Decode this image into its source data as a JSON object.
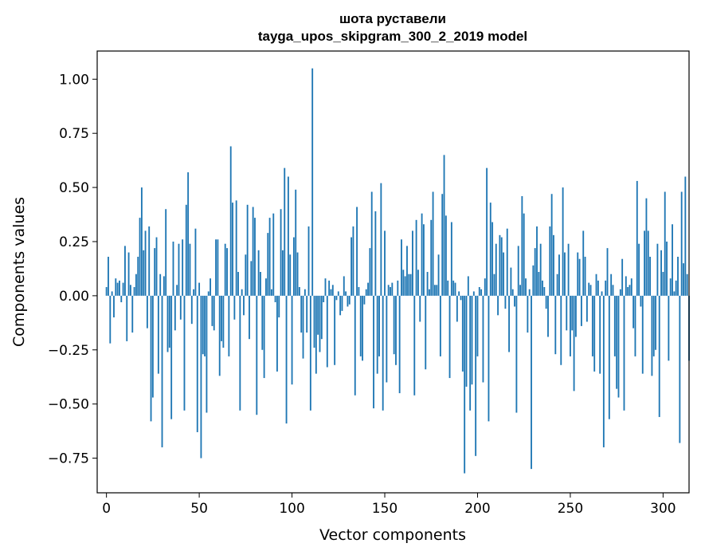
{
  "chart_data": {
    "type": "bar",
    "title_lines": [
      "шота руставели",
      "tayga_upos_skipgram_300_2_2019 model"
    ],
    "xlabel": "Vector components",
    "ylabel": "Components values",
    "xlim": [
      -5,
      314
    ],
    "ylim": [
      -0.91,
      1.13
    ],
    "xticks": [
      0,
      50,
      100,
      150,
      200,
      250,
      300
    ],
    "yticks": [
      -0.75,
      -0.5,
      -0.25,
      0.0,
      0.25,
      0.5,
      0.75,
      1.0
    ],
    "ytick_labels": [
      "−0.75",
      "−0.50",
      "−0.25",
      "0.00",
      "0.25",
      "0.50",
      "0.75",
      "1.00"
    ],
    "xtick_labels": [
      "0",
      "50",
      "100",
      "150",
      "200",
      "250",
      "300"
    ],
    "bar_color": "#1f77b4",
    "grid": false,
    "values": [
      0.04,
      0.18,
      -0.22,
      0.02,
      -0.1,
      0.08,
      0.06,
      0.07,
      -0.03,
      0.06,
      0.23,
      -0.21,
      0.2,
      0.05,
      -0.17,
      0.04,
      0.1,
      0.18,
      0.36,
      0.5,
      0.21,
      0.3,
      -0.15,
      0.32,
      -0.58,
      -0.47,
      0.22,
      0.27,
      -0.36,
      0.1,
      -0.7,
      0.09,
      0.4,
      -0.26,
      -0.24,
      -0.57,
      0.25,
      -0.16,
      0.05,
      0.24,
      -0.11,
      0.26,
      -0.53,
      0.42,
      0.57,
      0.24,
      -0.13,
      0.03,
      0.31,
      -0.63,
      0.06,
      -0.75,
      -0.27,
      -0.28,
      -0.54,
      0.02,
      0.08,
      -0.14,
      -0.16,
      0.26,
      0.26,
      -0.37,
      -0.21,
      -0.24,
      0.24,
      0.22,
      -0.28,
      0.69,
      0.43,
      -0.11,
      0.44,
      0.11,
      -0.53,
      0.03,
      -0.09,
      0.19,
      0.42,
      -0.2,
      0.16,
      0.41,
      0.36,
      -0.55,
      0.21,
      0.11,
      -0.25,
      -0.38,
      0.08,
      0.29,
      0.36,
      0.03,
      0.38,
      -0.03,
      -0.35,
      -0.1,
      0.4,
      0.21,
      0.59,
      -0.59,
      0.55,
      0.19,
      -0.41,
      0.27,
      0.49,
      0.2,
      0.04,
      -0.17,
      -0.29,
      0.03,
      -0.17,
      0.32,
      -0.53,
      1.05,
      -0.24,
      -0.36,
      -0.18,
      -0.26,
      -0.2,
      -0.03,
      0.08,
      -0.33,
      0.07,
      0.03,
      0.05,
      -0.32,
      -0.02,
      0.02,
      -0.09,
      -0.07,
      0.09,
      0.02,
      -0.05,
      -0.04,
      0.27,
      0.32,
      -0.46,
      0.41,
      0.04,
      -0.28,
      -0.3,
      -0.04,
      0.03,
      0.06,
      0.22,
      0.48,
      -0.52,
      0.39,
      -0.36,
      -0.28,
      0.52,
      -0.53,
      0.3,
      -0.4,
      0.05,
      0.04,
      0.06,
      -0.27,
      -0.32,
      0.07,
      -0.45,
      0.26,
      0.12,
      0.09,
      0.23,
      0.1,
      0.1,
      0.3,
      -0.46,
      0.35,
      0.12,
      -0.12,
      0.38,
      0.33,
      -0.34,
      0.11,
      0.03,
      0.35,
      0.48,
      0.05,
      0.05,
      0.19,
      -0.28,
      0.47,
      0.65,
      0.37,
      0.07,
      -0.38,
      0.34,
      0.07,
      0.06,
      -0.12,
      0.02,
      -0.02,
      -0.35,
      -0.82,
      -0.42,
      0.09,
      -0.53,
      -0.41,
      0.02,
      -0.74,
      -0.28,
      0.04,
      0.03,
      -0.4,
      0.08,
      0.59,
      -0.58,
      0.43,
      0.34,
      0.1,
      0.24,
      -0.09,
      0.28,
      0.27,
      0.2,
      -0.06,
      0.31,
      -0.26,
      0.13,
      0.03,
      -0.05,
      -0.54,
      0.23,
      0.05,
      0.46,
      0.38,
      0.08,
      -0.17,
      0.03,
      -0.8,
      0.14,
      0.22,
      0.32,
      0.11,
      0.24,
      0.07,
      0.04,
      -0.06,
      -0.19,
      0.32,
      0.47,
      0.28,
      -0.27,
      0.1,
      0.19,
      -0.32,
      0.5,
      0.2,
      -0.16,
      0.24,
      -0.28,
      -0.16,
      -0.44,
      -0.19,
      0.2,
      0.17,
      -0.14,
      0.3,
      0.18,
      -0.12,
      0.06,
      0.05,
      -0.28,
      -0.35,
      0.1,
      0.07,
      -0.36,
      0.02,
      -0.7,
      0.07,
      0.22,
      -0.57,
      0.1,
      0.05,
      -0.28,
      -0.43,
      -0.47,
      0.03,
      0.17,
      -0.53,
      0.09,
      0.04,
      0.05,
      0.08,
      -0.15,
      -0.28,
      0.53,
      0.24,
      -0.05,
      -0.36,
      0.3,
      0.45,
      0.3,
      0.18,
      -0.37,
      -0.28,
      -0.25,
      0.24,
      -0.56,
      0.21,
      0.11,
      0.48,
      0.25,
      -0.3,
      0.08,
      0.33,
      0.02,
      0.07,
      0.18,
      -0.68,
      0.48,
      0.15,
      0.55,
      0.1,
      -0.3
    ]
  }
}
